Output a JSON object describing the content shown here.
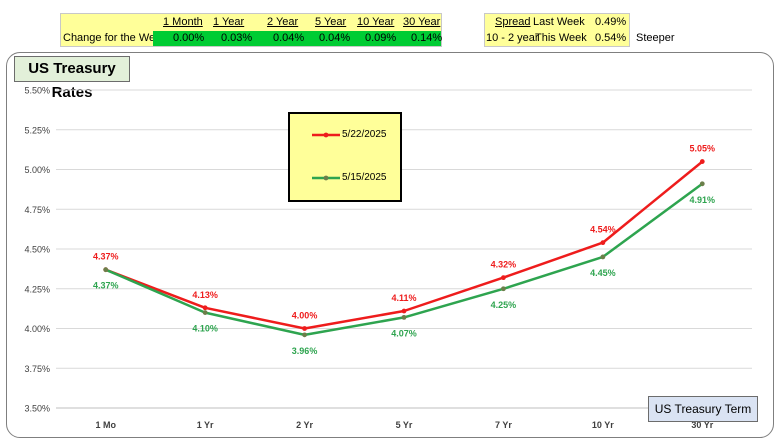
{
  "week_change": {
    "row_label": "Change for the Week:",
    "columns": [
      {
        "header": "1 Month",
        "value": "0.00%"
      },
      {
        "header": "1 Year",
        "value": "0.03%"
      },
      {
        "header": "2 Year",
        "value": "0.04%"
      },
      {
        "header": "5 Year",
        "value": "0.04%"
      },
      {
        "header": "10 Year",
        "value": "0.09%"
      },
      {
        "header": "30 Year",
        "value": "0.14%"
      }
    ]
  },
  "spread": {
    "header": "Spread",
    "label": "10 - 2 year",
    "rows": [
      {
        "label": "Last Week",
        "value": "0.49%"
      },
      {
        "label": "This Week",
        "value": "0.54%"
      }
    ],
    "note": "Steeper"
  },
  "chart_title": "US Treasury Rates",
  "term_label": "US Treasury Term",
  "colors": {
    "series_1": "#ee1c1c",
    "series_2": "#2ea44f",
    "grid": "#d9d9d9"
  },
  "chart_data": {
    "type": "line",
    "title": "US Treasury Rates",
    "xlabel": "US Treasury Term",
    "ylabel": "",
    "categories": [
      "1 Mo",
      "1 Yr",
      "2 Yr",
      "5 Yr",
      "7 Yr",
      "10 Yr",
      "30 Yr"
    ],
    "ylim": [
      3.5,
      5.5
    ],
    "yticks": [
      "3.50%",
      "3.75%",
      "4.00%",
      "4.25%",
      "4.50%",
      "4.75%",
      "5.00%",
      "5.25%",
      "5.50%"
    ],
    "grid": true,
    "legend": "upper-center",
    "series": [
      {
        "name": "5/22/2025",
        "values": [
          4.37,
          4.13,
          4.0,
          4.11,
          4.32,
          4.54,
          5.05
        ],
        "labels": [
          "4.37%",
          "4.13%",
          "4.00%",
          "4.11%",
          "4.32%",
          "4.54%",
          "5.05%"
        ]
      },
      {
        "name": "5/15/2025",
        "values": [
          4.37,
          4.1,
          3.96,
          4.07,
          4.25,
          4.45,
          4.91
        ],
        "labels": [
          "4.37%",
          "4.10%",
          "3.96%",
          "4.07%",
          "4.25%",
          "4.45%",
          "4.91%"
        ]
      }
    ]
  }
}
